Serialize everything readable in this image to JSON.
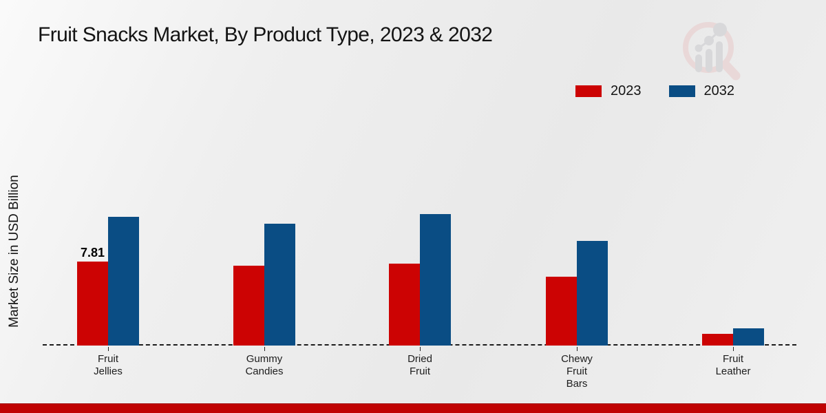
{
  "header": {
    "title": "Fruit Snacks Market, By Product Type, 2023 & 2032"
  },
  "branding": {
    "logo": "magnifier-bar-chart-watermark-logo",
    "logo_ring_color": "#e9d6d6",
    "logo_bar_color": "#d6d6d9"
  },
  "footer": {
    "bar_color": "#c00202"
  },
  "chart_data": {
    "type": "bar",
    "title": "Fruit Snacks Market, By Product Type, 2023 & 2032",
    "xlabel": "",
    "ylabel": "Market Size in USD Billion",
    "categories": [
      "Fruit Jellies",
      "Gummy Candies",
      "Dried Fruit",
      "Chewy Fruit Bars",
      "Fruit Leather"
    ],
    "series": [
      {
        "name": "2023",
        "color": "#cc0303",
        "values": [
          7.81,
          7.4,
          7.6,
          6.4,
          1.1
        ],
        "labels": [
          "7.81",
          "",
          "",
          "",
          ""
        ]
      },
      {
        "name": "2032",
        "color": "#0a4d84",
        "values": [
          12.0,
          11.3,
          12.2,
          9.7,
          1.6
        ],
        "labels": [
          "",
          "",
          "",
          "",
          ""
        ]
      }
    ],
    "ylim": [
      0,
      13
    ],
    "grid": false,
    "y_axis_ticks_visible": false,
    "baseline_style": "dashed",
    "legend_position": "top-right"
  }
}
